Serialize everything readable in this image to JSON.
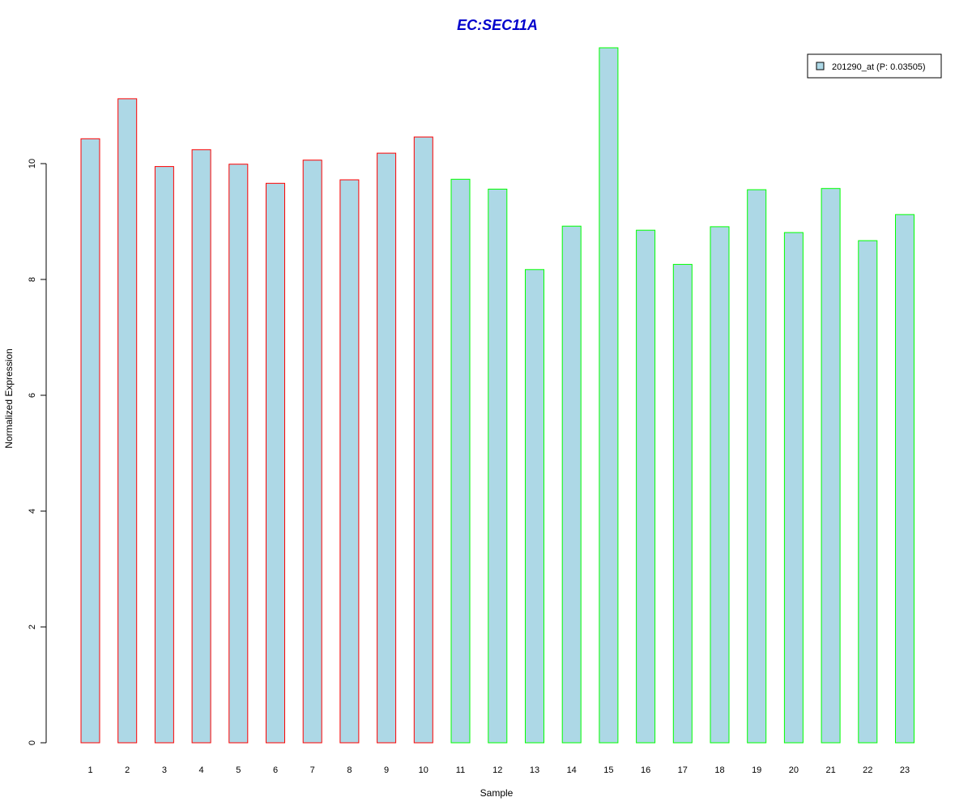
{
  "chart_data": {
    "type": "bar",
    "title": "EC:SEC11A",
    "xlabel": "Sample",
    "ylabel": "Normalized Expression",
    "categories": [
      "1",
      "2",
      "3",
      "4",
      "5",
      "6",
      "7",
      "8",
      "9",
      "10",
      "11",
      "12",
      "13",
      "14",
      "15",
      "16",
      "17",
      "18",
      "19",
      "20",
      "21",
      "22",
      "23"
    ],
    "series": [
      {
        "name": "201290_at (P: 0.03505)",
        "values": [
          10.43,
          11.12,
          9.95,
          10.24,
          9.99,
          9.66,
          10.06,
          9.72,
          10.18,
          10.46,
          9.73,
          9.56,
          8.17,
          8.92,
          12.0,
          8.85,
          8.26,
          8.91,
          9.55,
          8.81,
          9.57,
          8.67,
          9.12
        ]
      }
    ],
    "yticks": [
      0,
      2,
      4,
      6,
      8,
      10
    ],
    "ylim": [
      0,
      12
    ],
    "grid": false,
    "legend": "top-right",
    "colors": {
      "bar_fill": "#add8e6",
      "group1_border": "#ff0000",
      "group2_border": "#00ff00",
      "title": "#0000cc"
    },
    "bar_border_groups": [
      "group1",
      "group1",
      "group1",
      "group1",
      "group1",
      "group1",
      "group1",
      "group1",
      "group1",
      "group1",
      "group2",
      "group2",
      "group2",
      "group2",
      "group2",
      "group2",
      "group2",
      "group2",
      "group2",
      "group2",
      "group2",
      "group2",
      "group2"
    ]
  }
}
